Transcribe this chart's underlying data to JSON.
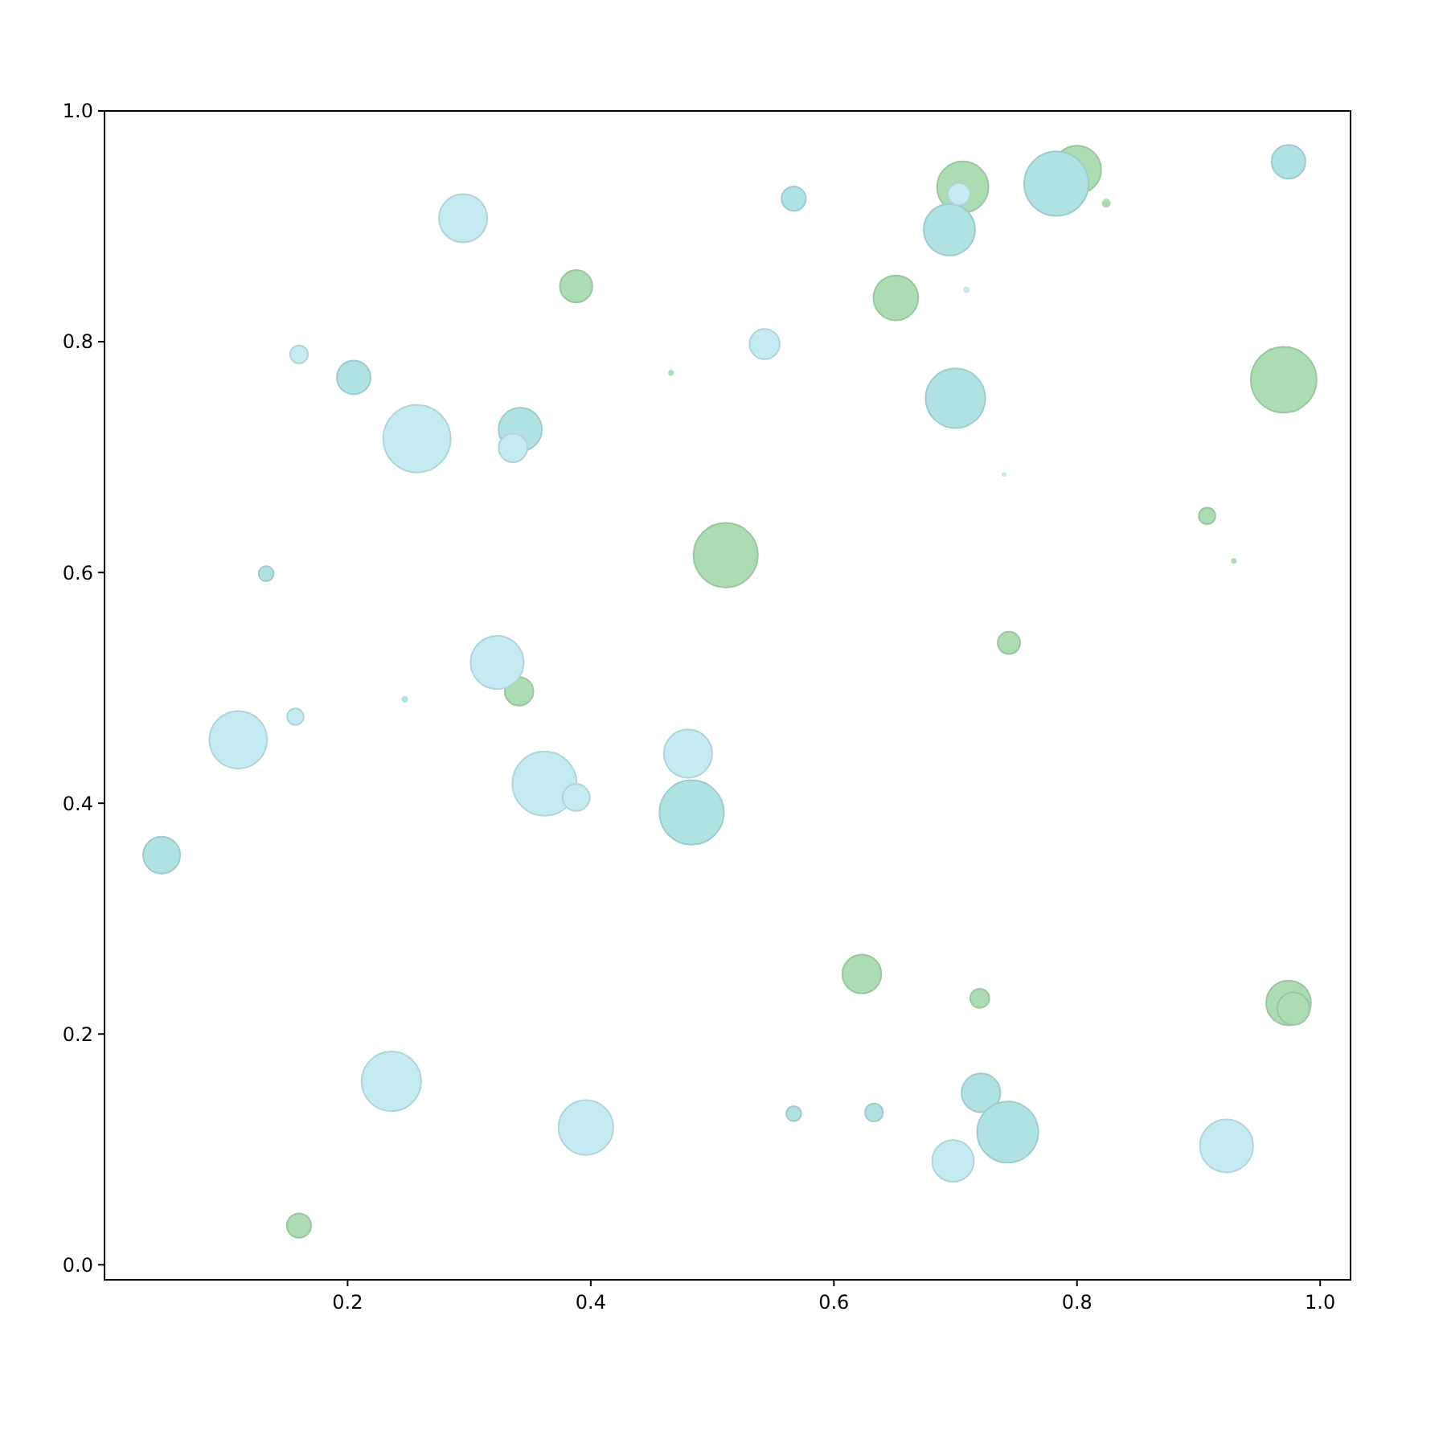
{
  "chart_data": {
    "type": "bubble",
    "xlim": [
      0,
      1.025
    ],
    "ylim": [
      -0.013,
      1.0
    ],
    "xticks": [
      0.2,
      0.4,
      0.6,
      0.8,
      {
        "value": 1,
        "label": "1.0"
      }
    ],
    "yticks": [
      {
        "value": 0,
        "label": "0.0"
      },
      0.2,
      0.4,
      0.6,
      0.8,
      {
        "value": 1,
        "label": "1.0"
      }
    ],
    "grid": false,
    "marker": "circle",
    "series": [
      {
        "color": "#c5ebf2",
        "x": [
          0.295,
          0.16,
          0.257,
          0.336,
          0.323,
          0.11,
          0.157,
          0.362,
          0.388,
          0.48,
          0.236,
          0.396,
          0.703,
          0.709,
          0.543,
          0.74,
          0.698,
          0.923
        ],
        "values": [
          0.907,
          0.789,
          0.716,
          0.708,
          0.522,
          0.455,
          0.475,
          0.417,
          0.405,
          0.443,
          0.159,
          0.119,
          0.928,
          0.845,
          0.798,
          0.685,
          0.09,
          0.103
        ],
        "sizes": [
          0.51,
          0.07,
          1,
          0.18,
          0.62,
          0.73,
          0.06,
          0.91,
          0.16,
          0.51,
          0.78,
          0.66,
          0.11,
          0.009,
          0.2,
          0.005,
          0.38,
          0.62
        ]
      },
      {
        "color": "#b0e2e4",
        "x": [
          0.205,
          0.342,
          0.133,
          0.247,
          0.483,
          0.047,
          0.567,
          0.695,
          0.783,
          0.974,
          0.7,
          0.567,
          0.633,
          0.721,
          0.743
        ],
        "values": [
          0.769,
          0.724,
          0.599,
          0.49,
          0.392,
          0.355,
          0.924,
          0.897,
          0.937,
          0.956,
          0.751,
          0.131,
          0.132,
          0.149,
          0.115
        ],
        "sizes": [
          0.25,
          0.41,
          0.05,
          0.009,
          0.91,
          0.3,
          0.13,
          0.58,
          0.91,
          0.25,
          0.78,
          0.05,
          0.07,
          0.33,
          0.82
        ]
      },
      {
        "color": "#acdcb1",
        "x": [
          0.388,
          0.466,
          0.511,
          0.341,
          0.16,
          0.706,
          0.8,
          0.824,
          0.651,
          0.97,
          0.907,
          0.929,
          0.744,
          0.623,
          0.72,
          0.974,
          0.978
        ],
        "values": [
          0.848,
          0.773,
          0.615,
          0.497,
          0.034,
          0.934,
          0.949,
          0.92,
          0.838,
          0.767,
          0.649,
          0.61,
          0.539,
          0.252,
          0.231,
          0.227,
          0.222
        ],
        "sizes": [
          0.23,
          0.007,
          0.91,
          0.18,
          0.13,
          0.58,
          0.51,
          0.017,
          0.44,
          0.95,
          0.06,
          0.007,
          0.11,
          0.33,
          0.08,
          0.44,
          0.23
        ]
      }
    ]
  }
}
